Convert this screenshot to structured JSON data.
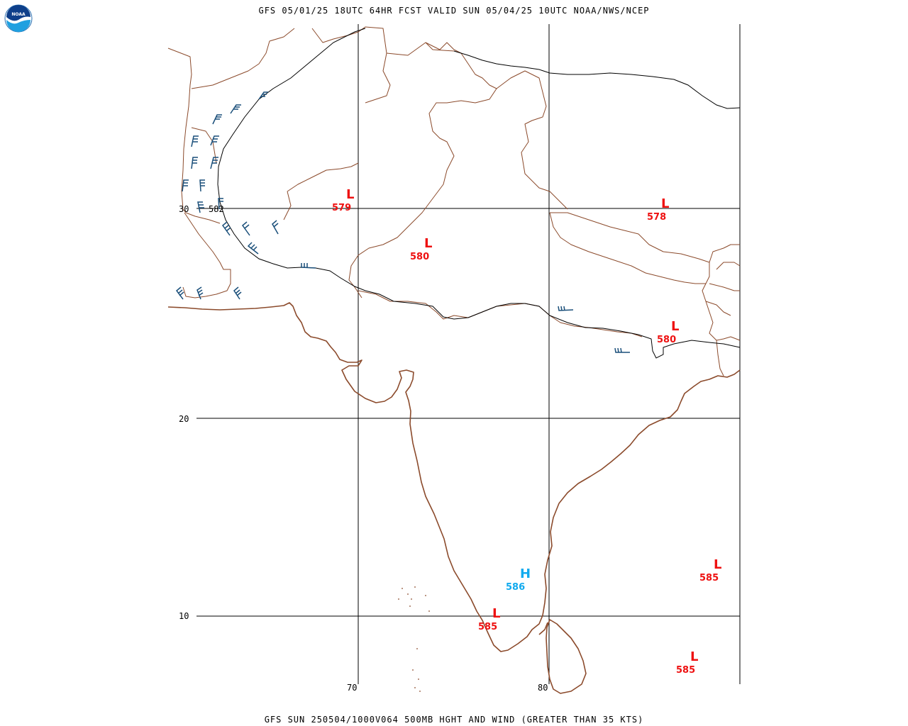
{
  "header": {
    "title": "GFS 05/01/25 18UTC 64HR FCST VALID SUN 05/04/25 10UTC NOAA/NWS/NCEP",
    "logo_text": "NOAA"
  },
  "footer": {
    "title": "GFS SUN 250504/1000V064 500MB HGHT AND WIND (GREATER THAN 35 KTS)"
  },
  "map": {
    "lat_labels": [
      "30",
      "20",
      "10"
    ],
    "lon_labels": [
      "70",
      "80"
    ],
    "contour_label": "582",
    "pressure_centers": [
      {
        "type": "L",
        "value": "579",
        "color": "#ee1111"
      },
      {
        "type": "L",
        "value": "580",
        "color": "#ee1111"
      },
      {
        "type": "L",
        "value": "578",
        "color": "#ee1111"
      },
      {
        "type": "L",
        "value": "580",
        "color": "#ee1111"
      },
      {
        "type": "H",
        "value": "586",
        "color": "#11aaee"
      },
      {
        "type": "L",
        "value": "585",
        "color": "#ee1111"
      },
      {
        "type": "L",
        "value": "585",
        "color": "#ee1111"
      },
      {
        "type": "L",
        "value": "585",
        "color": "#ee1111"
      }
    ],
    "colors": {
      "coast": "#8b4a2b",
      "barb": "#1a4f7a",
      "grid": "#000000"
    }
  }
}
